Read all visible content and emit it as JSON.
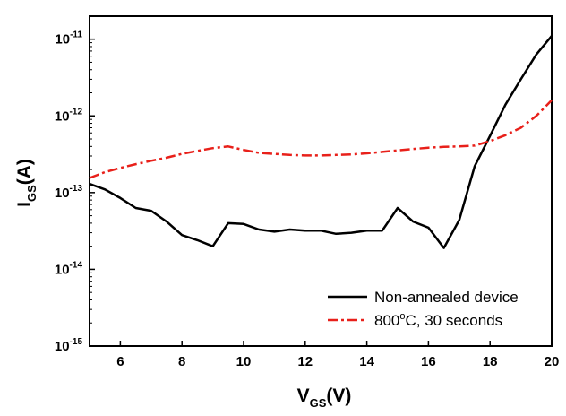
{
  "chart_data": {
    "type": "line",
    "xlabel": {
      "main": "V",
      "sub": "GS",
      "unit": "(V)"
    },
    "ylabel": {
      "main": "I",
      "sub": "GS",
      "unit": "(A)"
    },
    "xlim": [
      5,
      20
    ],
    "ylim_log10": [
      -15,
      -10.7
    ],
    "y_scale": "log",
    "x_ticks": [
      6,
      8,
      10,
      12,
      14,
      16,
      18,
      20
    ],
    "y_ticks": [
      {
        "base": "10",
        "exp": "-15",
        "log": -15
      },
      {
        "base": "10",
        "exp": "-14",
        "log": -14
      },
      {
        "base": "10",
        "exp": "-13",
        "log": -13
      },
      {
        "base": "10",
        "exp": "-12",
        "log": -12
      },
      {
        "base": "10",
        "exp": "-11",
        "log": -11
      }
    ],
    "legend_position": "bottom-right",
    "series": [
      {
        "name": "Non-annealed device",
        "color": "#000000",
        "dash": "solid",
        "x": [
          5,
          5.5,
          6,
          6.5,
          7,
          7.5,
          8,
          8.5,
          9,
          9.5,
          10,
          10.5,
          11,
          11.5,
          12,
          12.5,
          13,
          13.5,
          14,
          14.5,
          15,
          15.5,
          16,
          16.5,
          17,
          17.5,
          18,
          18.5,
          19,
          19.5,
          20
        ],
        "y": [
          1.3e-13,
          1.1e-13,
          8.5e-14,
          6.3e-14,
          5.8e-14,
          4.2e-14,
          2.8e-14,
          2.4e-14,
          2e-14,
          4e-14,
          3.9e-14,
          3.3e-14,
          3.1e-14,
          3.3e-14,
          3.2e-14,
          3.2e-14,
          2.9e-14,
          3e-14,
          3.2e-14,
          3.2e-14,
          6.3e-14,
          4.2e-14,
          3.5e-14,
          1.9e-14,
          4.4e-14,
          2.2e-13,
          5.5e-13,
          1.4e-12,
          3e-12,
          6.3e-12,
          1.1e-11
        ]
      },
      {
        "name": "800°C, 30 seconds",
        "name_parts": {
          "pre": "800",
          "sup": "o",
          "post": "C, 30 seconds"
        },
        "color": "#e8201a",
        "dash": "dash-dot",
        "x": [
          5,
          5.5,
          6,
          6.5,
          7,
          7.5,
          8,
          8.5,
          9,
          9.5,
          10,
          10.5,
          11,
          11.5,
          12,
          12.5,
          13,
          13.5,
          14,
          14.5,
          15,
          15.5,
          16,
          16.5,
          17,
          17.5,
          18,
          18.5,
          19,
          19.5,
          20
        ],
        "y": [
          1.55e-13,
          1.85e-13,
          2.1e-13,
          2.35e-13,
          2.6e-13,
          2.85e-13,
          3.2e-13,
          3.5e-13,
          3.8e-13,
          4e-13,
          3.6e-13,
          3.3e-13,
          3.2e-13,
          3.1e-13,
          3.05e-13,
          3.05e-13,
          3.1e-13,
          3.15e-13,
          3.25e-13,
          3.4e-13,
          3.55e-13,
          3.7e-13,
          3.85e-13,
          3.95e-13,
          4e-13,
          4.1e-13,
          4.7e-13,
          5.6e-13,
          7e-13,
          1e-12,
          1.6e-12
        ]
      }
    ]
  }
}
